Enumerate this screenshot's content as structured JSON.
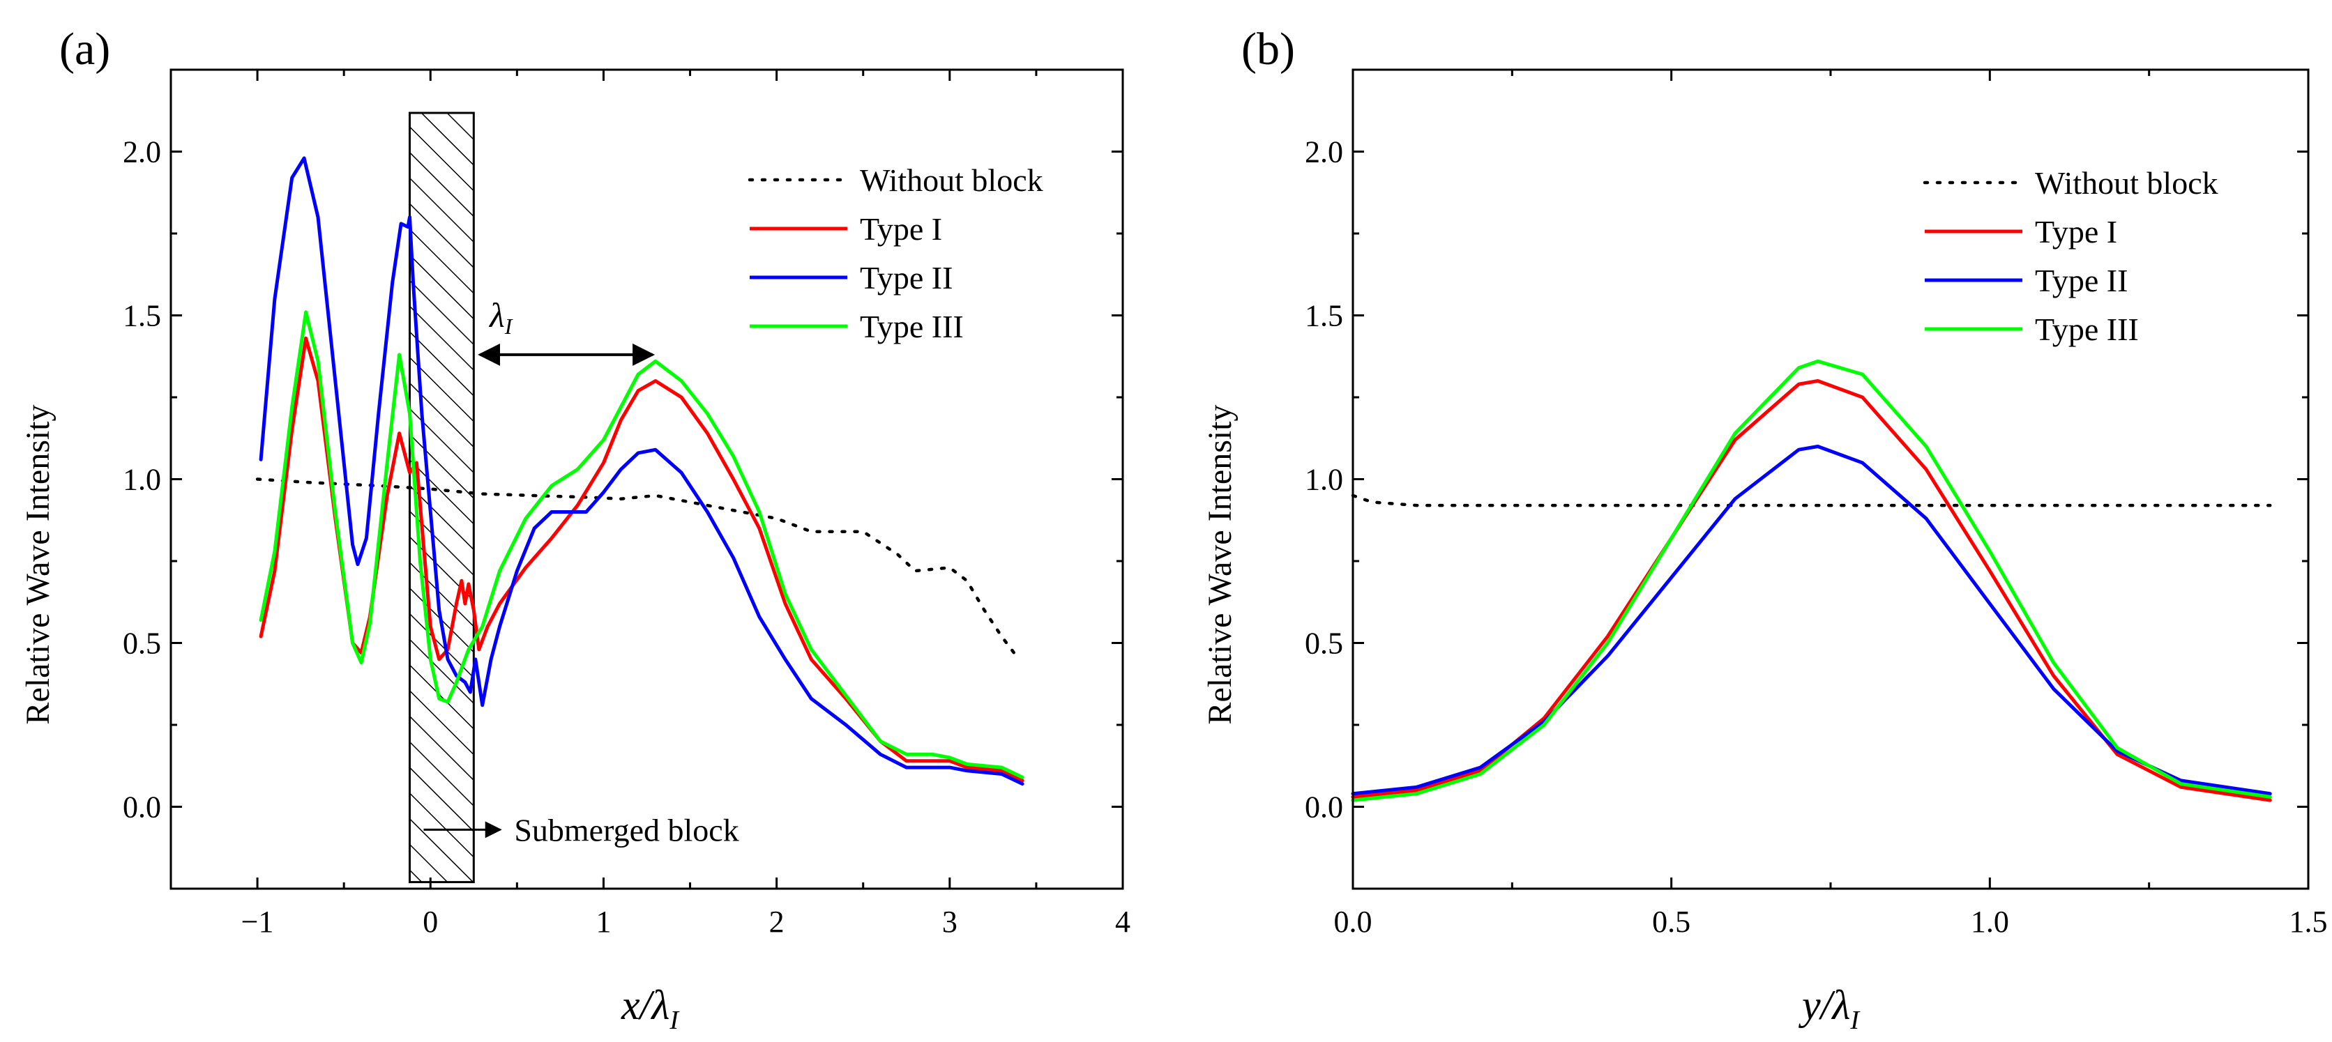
{
  "chart_data": [
    {
      "type": "line",
      "panel_label": "(a)",
      "xlabel": "x/λ",
      "xlabel_sub": "I",
      "ylabel": "Relative Wave Intensity",
      "xlim": [
        -1.5,
        4
      ],
      "ylim": [
        -0.25,
        2.25
      ],
      "x_ticks": [
        -1,
        0,
        1,
        2,
        3,
        4
      ],
      "x_tick_labels": [
        "−1",
        "0",
        "1",
        "2",
        "3",
        "4"
      ],
      "y_ticks": [
        0,
        0.5,
        1,
        1.5,
        2
      ],
      "y_tick_labels": [
        "0.0",
        "0.5",
        "1.0",
        "1.5",
        "2.0"
      ],
      "legend_position": "top-right",
      "series": [
        {
          "name": "Without block",
          "color": "#000000",
          "style": "dotted",
          "points": [
            [
              -1,
              1.0
            ],
            [
              -0.7,
              0.99
            ],
            [
              -0.3,
              0.98
            ],
            [
              0,
              0.97
            ],
            [
              0.3,
              0.955
            ],
            [
              0.6,
              0.95
            ],
            [
              0.9,
              0.945
            ],
            [
              1.1,
              0.94
            ],
            [
              1.3,
              0.95
            ],
            [
              1.5,
              0.93
            ],
            [
              1.8,
              0.9
            ],
            [
              2.0,
              0.88
            ],
            [
              2.2,
              0.84
            ],
            [
              2.4,
              0.84
            ],
            [
              2.5,
              0.84
            ],
            [
              2.7,
              0.77
            ],
            [
              2.8,
              0.72
            ],
            [
              3.0,
              0.73
            ],
            [
              3.1,
              0.69
            ],
            [
              3.2,
              0.6
            ],
            [
              3.3,
              0.52
            ],
            [
              3.4,
              0.45
            ]
          ]
        },
        {
          "name": "Type I",
          "color": "#ff0000",
          "style": "solid",
          "points": [
            [
              -0.98,
              0.52
            ],
            [
              -0.9,
              0.72
            ],
            [
              -0.8,
              1.15
            ],
            [
              -0.72,
              1.43
            ],
            [
              -0.65,
              1.3
            ],
            [
              -0.55,
              0.88
            ],
            [
              -0.45,
              0.5
            ],
            [
              -0.4,
              0.47
            ],
            [
              -0.35,
              0.58
            ],
            [
              -0.25,
              0.95
            ],
            [
              -0.18,
              1.14
            ],
            [
              -0.12,
              1.02
            ],
            [
              -0.08,
              1.05
            ],
            [
              -0.04,
              0.8
            ],
            [
              0,
              0.55
            ],
            [
              0.05,
              0.45
            ],
            [
              0.1,
              0.48
            ],
            [
              0.15,
              0.62
            ],
            [
              0.18,
              0.69
            ],
            [
              0.2,
              0.62
            ],
            [
              0.22,
              0.68
            ],
            [
              0.25,
              0.6
            ],
            [
              0.28,
              0.48
            ],
            [
              0.33,
              0.55
            ],
            [
              0.4,
              0.62
            ],
            [
              0.55,
              0.73
            ],
            [
              0.7,
              0.82
            ],
            [
              0.85,
              0.92
            ],
            [
              1.0,
              1.05
            ],
            [
              1.1,
              1.18
            ],
            [
              1.2,
              1.27
            ],
            [
              1.3,
              1.3
            ],
            [
              1.45,
              1.25
            ],
            [
              1.6,
              1.14
            ],
            [
              1.75,
              1.0
            ],
            [
              1.9,
              0.85
            ],
            [
              2.05,
              0.62
            ],
            [
              2.2,
              0.45
            ],
            [
              2.4,
              0.33
            ],
            [
              2.6,
              0.2
            ],
            [
              2.75,
              0.14
            ],
            [
              2.9,
              0.14
            ],
            [
              3.0,
              0.14
            ],
            [
              3.1,
              0.12
            ],
            [
              3.3,
              0.11
            ],
            [
              3.42,
              0.08
            ]
          ]
        },
        {
          "name": "Type II",
          "color": "#0000ff",
          "style": "solid",
          "points": [
            [
              -0.98,
              1.06
            ],
            [
              -0.9,
              1.55
            ],
            [
              -0.8,
              1.92
            ],
            [
              -0.73,
              1.98
            ],
            [
              -0.65,
              1.8
            ],
            [
              -0.55,
              1.3
            ],
            [
              -0.45,
              0.8
            ],
            [
              -0.42,
              0.74
            ],
            [
              -0.37,
              0.82
            ],
            [
              -0.3,
              1.2
            ],
            [
              -0.22,
              1.6
            ],
            [
              -0.17,
              1.78
            ],
            [
              -0.13,
              1.77
            ],
            [
              -0.12,
              1.8
            ],
            [
              -0.1,
              1.6
            ],
            [
              -0.05,
              1.2
            ],
            [
              0,
              0.9
            ],
            [
              0.05,
              0.6
            ],
            [
              0.1,
              0.45
            ],
            [
              0.15,
              0.4
            ],
            [
              0.2,
              0.38
            ],
            [
              0.23,
              0.35
            ],
            [
              0.26,
              0.45
            ],
            [
              0.3,
              0.31
            ],
            [
              0.35,
              0.45
            ],
            [
              0.4,
              0.55
            ],
            [
              0.5,
              0.72
            ],
            [
              0.6,
              0.85
            ],
            [
              0.7,
              0.9
            ],
            [
              0.8,
              0.9
            ],
            [
              0.9,
              0.9
            ],
            [
              1.0,
              0.96
            ],
            [
              1.1,
              1.03
            ],
            [
              1.2,
              1.08
            ],
            [
              1.3,
              1.09
            ],
            [
              1.45,
              1.02
            ],
            [
              1.6,
              0.9
            ],
            [
              1.75,
              0.76
            ],
            [
              1.9,
              0.58
            ],
            [
              2.05,
              0.45
            ],
            [
              2.2,
              0.33
            ],
            [
              2.4,
              0.25
            ],
            [
              2.6,
              0.16
            ],
            [
              2.75,
              0.12
            ],
            [
              2.9,
              0.12
            ],
            [
              3.0,
              0.12
            ],
            [
              3.1,
              0.11
            ],
            [
              3.3,
              0.1
            ],
            [
              3.42,
              0.07
            ]
          ]
        },
        {
          "name": "Type III",
          "color": "#00ff00",
          "style": "solid",
          "points": [
            [
              -0.98,
              0.57
            ],
            [
              -0.9,
              0.78
            ],
            [
              -0.8,
              1.22
            ],
            [
              -0.72,
              1.51
            ],
            [
              -0.65,
              1.36
            ],
            [
              -0.55,
              0.9
            ],
            [
              -0.45,
              0.5
            ],
            [
              -0.4,
              0.44
            ],
            [
              -0.35,
              0.56
            ],
            [
              -0.25,
              1.05
            ],
            [
              -0.18,
              1.38
            ],
            [
              -0.12,
              1.2
            ],
            [
              -0.06,
              0.75
            ],
            [
              0,
              0.45
            ],
            [
              0.05,
              0.33
            ],
            [
              0.1,
              0.32
            ],
            [
              0.15,
              0.38
            ],
            [
              0.22,
              0.48
            ],
            [
              0.3,
              0.55
            ],
            [
              0.4,
              0.72
            ],
            [
              0.55,
              0.88
            ],
            [
              0.7,
              0.98
            ],
            [
              0.85,
              1.03
            ],
            [
              1.0,
              1.12
            ],
            [
              1.1,
              1.22
            ],
            [
              1.2,
              1.32
            ],
            [
              1.3,
              1.36
            ],
            [
              1.45,
              1.3
            ],
            [
              1.6,
              1.2
            ],
            [
              1.75,
              1.07
            ],
            [
              1.9,
              0.9
            ],
            [
              2.05,
              0.65
            ],
            [
              2.2,
              0.48
            ],
            [
              2.4,
              0.34
            ],
            [
              2.6,
              0.2
            ],
            [
              2.75,
              0.16
            ],
            [
              2.9,
              0.16
            ],
            [
              3.0,
              0.15
            ],
            [
              3.1,
              0.13
            ],
            [
              3.3,
              0.12
            ],
            [
              3.42,
              0.09
            ]
          ]
        }
      ],
      "shaded_region": {
        "label": "Submerged block",
        "x_range": [
          -0.12,
          0.25
        ]
      },
      "annotations": [
        {
          "text": "λ",
          "sub": "I",
          "type": "double-arrow",
          "x_range": [
            0.27,
            1.3
          ],
          "y": 1.38
        }
      ]
    },
    {
      "type": "line",
      "panel_label": "(b)",
      "xlabel": "y/λ",
      "xlabel_sub": "I",
      "ylabel": "Relative Wave Intensity",
      "xlim": [
        0,
        1.5
      ],
      "ylim": [
        -0.25,
        2.25
      ],
      "x_ticks": [
        0,
        0.5,
        1.0,
        1.5
      ],
      "x_tick_labels": [
        "0.0",
        "0.5",
        "1.0",
        "1.5"
      ],
      "y_ticks": [
        0,
        0.5,
        1,
        1.5,
        2
      ],
      "y_tick_labels": [
        "0.0",
        "0.5",
        "1.0",
        "1.5",
        "2.0"
      ],
      "legend_position": "top-right",
      "series": [
        {
          "name": "Without block",
          "color": "#000000",
          "style": "dotted",
          "points": [
            [
              0,
              0.95
            ],
            [
              0.03,
              0.93
            ],
            [
              0.1,
              0.92
            ],
            [
              0.3,
              0.92
            ],
            [
              0.5,
              0.92
            ],
            [
              0.7,
              0.92
            ],
            [
              0.9,
              0.92
            ],
            [
              1.1,
              0.92
            ],
            [
              1.3,
              0.92
            ],
            [
              1.44,
              0.92
            ]
          ]
        },
        {
          "name": "Type I",
          "color": "#ff0000",
          "style": "solid",
          "points": [
            [
              0,
              0.03
            ],
            [
              0.1,
              0.05
            ],
            [
              0.2,
              0.11
            ],
            [
              0.3,
              0.27
            ],
            [
              0.4,
              0.52
            ],
            [
              0.5,
              0.82
            ],
            [
              0.6,
              1.12
            ],
            [
              0.7,
              1.29
            ],
            [
              0.73,
              1.3
            ],
            [
              0.8,
              1.25
            ],
            [
              0.9,
              1.03
            ],
            [
              1.0,
              0.72
            ],
            [
              1.1,
              0.4
            ],
            [
              1.2,
              0.16
            ],
            [
              1.3,
              0.06
            ],
            [
              1.44,
              0.02
            ]
          ]
        },
        {
          "name": "Type II",
          "color": "#0000ff",
          "style": "solid",
          "points": [
            [
              0,
              0.04
            ],
            [
              0.1,
              0.06
            ],
            [
              0.2,
              0.12
            ],
            [
              0.3,
              0.26
            ],
            [
              0.4,
              0.46
            ],
            [
              0.5,
              0.7
            ],
            [
              0.6,
              0.94
            ],
            [
              0.7,
              1.09
            ],
            [
              0.73,
              1.1
            ],
            [
              0.8,
              1.05
            ],
            [
              0.9,
              0.88
            ],
            [
              1.0,
              0.62
            ],
            [
              1.1,
              0.36
            ],
            [
              1.2,
              0.17
            ],
            [
              1.3,
              0.08
            ],
            [
              1.44,
              0.04
            ]
          ]
        },
        {
          "name": "Type III",
          "color": "#00ff00",
          "style": "solid",
          "points": [
            [
              0,
              0.02
            ],
            [
              0.1,
              0.04
            ],
            [
              0.2,
              0.1
            ],
            [
              0.3,
              0.25
            ],
            [
              0.4,
              0.5
            ],
            [
              0.5,
              0.82
            ],
            [
              0.6,
              1.14
            ],
            [
              0.7,
              1.34
            ],
            [
              0.73,
              1.36
            ],
            [
              0.8,
              1.32
            ],
            [
              0.9,
              1.1
            ],
            [
              1.0,
              0.78
            ],
            [
              1.1,
              0.44
            ],
            [
              1.2,
              0.18
            ],
            [
              1.3,
              0.07
            ],
            [
              1.44,
              0.03
            ]
          ]
        }
      ]
    }
  ]
}
